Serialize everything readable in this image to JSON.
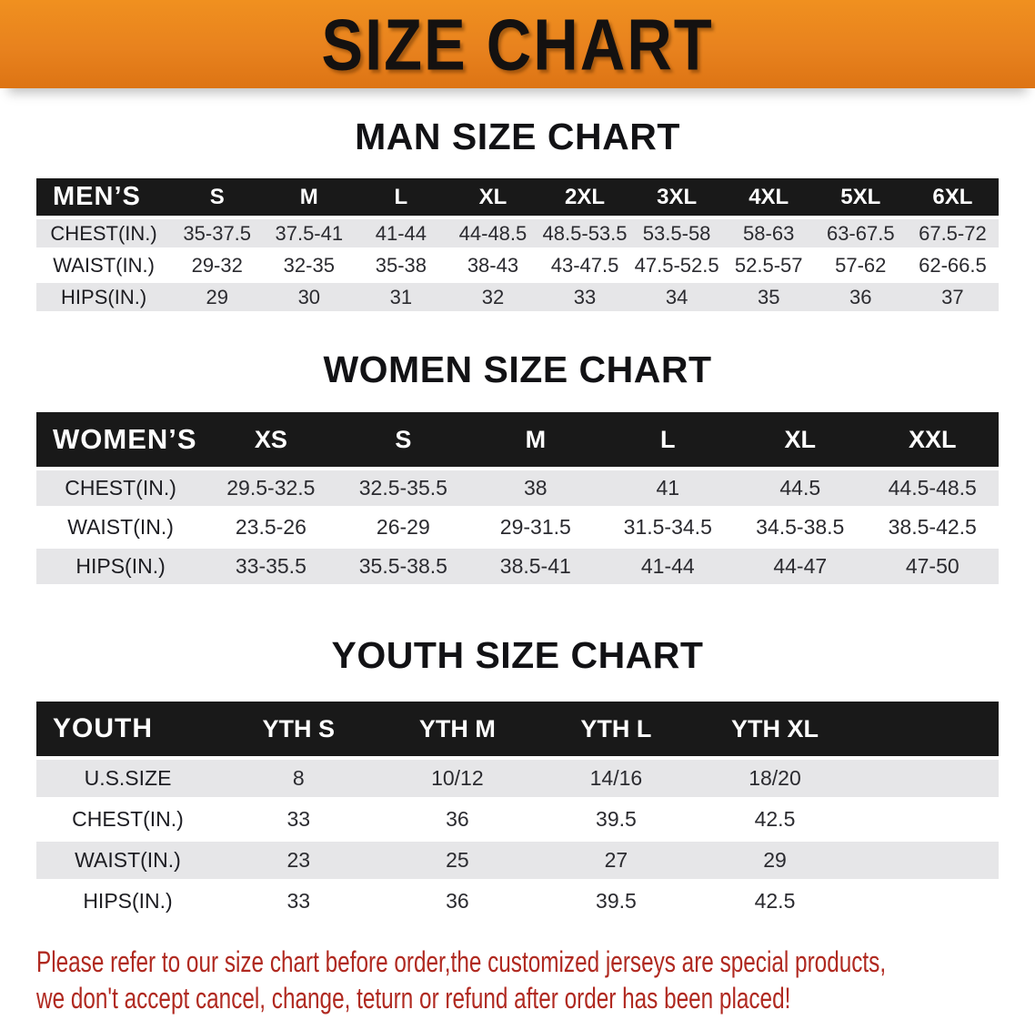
{
  "banner": {
    "title": "SIZE CHART"
  },
  "colors": {
    "banner_bg": "#e8821e",
    "table_header_bg": "#191919",
    "row_stripe": "#e6e6e8",
    "notice_text": "#b02920"
  },
  "sections": [
    {
      "heading": "MAN SIZE CHART",
      "table": {
        "corner": "MEN’S",
        "columns": [
          "S",
          "M",
          "L",
          "XL",
          "2XL",
          "3XL",
          "4XL",
          "5XL",
          "6XL"
        ],
        "rows": [
          {
            "label": "CHEST(IN.)",
            "values": [
              "35-37.5",
              "37.5-41",
              "41-44",
              "44-48.5",
              "48.5-53.5",
              "53.5-58",
              "58-63",
              "63-67.5",
              "67.5-72"
            ]
          },
          {
            "label": "WAIST(IN.)",
            "values": [
              "29-32",
              "32-35",
              "35-38",
              "38-43",
              "43-47.5",
              "47.5-52.5",
              "52.5-57",
              "57-62",
              "62-66.5"
            ]
          },
          {
            "label": "HIPS(IN.)",
            "values": [
              "29",
              "30",
              "31",
              "32",
              "33",
              "34",
              "35",
              "36",
              "37"
            ]
          }
        ]
      }
    },
    {
      "heading": "WOMEN SIZE CHART",
      "table": {
        "corner": "WOMEN’S",
        "columns": [
          "XS",
          "S",
          "M",
          "L",
          "XL",
          "XXL"
        ],
        "rows": [
          {
            "label": "CHEST(IN.)",
            "values": [
              "29.5-32.5",
              "32.5-35.5",
              "38",
              "41",
              "44.5",
              "44.5-48.5"
            ]
          },
          {
            "label": "WAIST(IN.)",
            "values": [
              "23.5-26",
              "26-29",
              "29-31.5",
              "31.5-34.5",
              "34.5-38.5",
              "38.5-42.5"
            ]
          },
          {
            "label": "HIPS(IN.)",
            "values": [
              "33-35.5",
              "35.5-38.5",
              "38.5-41",
              "41-44",
              "44-47",
              "47-50"
            ]
          }
        ]
      }
    },
    {
      "heading": "YOUTH SIZE CHART",
      "table": {
        "corner": "YOUTH",
        "columns": [
          "YTH S",
          "YTH M",
          "YTH L",
          "YTH XL"
        ],
        "rows": [
          {
            "label": "U.S.SIZE",
            "values": [
              "8",
              "10/12",
              "14/16",
              "18/20"
            ]
          },
          {
            "label": "CHEST(IN.)",
            "values": [
              "33",
              "36",
              "39.5",
              "42.5"
            ]
          },
          {
            "label": "WAIST(IN.)",
            "values": [
              "23",
              "25",
              "27",
              "29"
            ]
          },
          {
            "label": "HIPS(IN.)",
            "values": [
              "33",
              "36",
              "39.5",
              "42.5"
            ]
          }
        ]
      }
    }
  ],
  "footer": {
    "line1": "Please refer to our size chart before order,the customized jerseys are special products,",
    "line2": "we don't accept cancel, change, teturn or refund after order has been placed!"
  }
}
